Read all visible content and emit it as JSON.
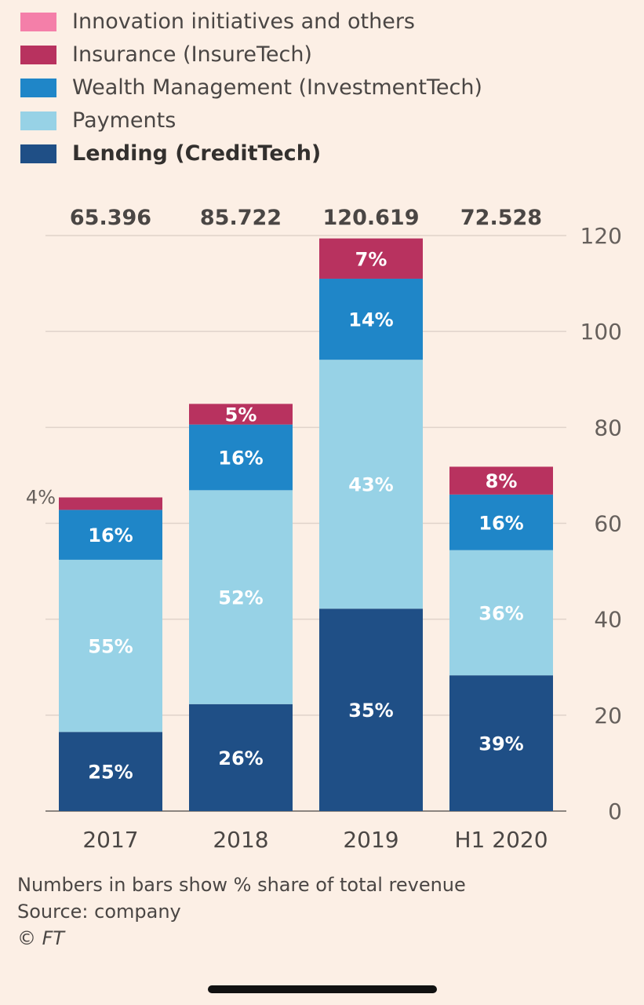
{
  "legend": {
    "items": [
      {
        "label": "Innovation initiatives and others",
        "color": "#f47fa9",
        "bold": false
      },
      {
        "label": "Insurance (InsureTech)",
        "color": "#b8325f",
        "bold": false
      },
      {
        "label": "Wealth Management (InvestmentTech)",
        "color": "#1f86c8",
        "bold": false
      },
      {
        "label": "Payments",
        "color": "#97d2e6",
        "bold": false
      },
      {
        "label": "Lending (CreditTech)",
        "color": "#1f4f86",
        "bold": true
      }
    ]
  },
  "notes": {
    "line1": "Numbers in bars show % share of total revenue",
    "line2": "Source: company",
    "line3": "© FT"
  },
  "chart_data": {
    "type": "bar",
    "stacked": true,
    "categories": [
      "2017",
      "2018",
      "2019",
      "H1 2020"
    ],
    "totals": [
      "65.396",
      "85.722",
      "120.619",
      "72.528"
    ],
    "total_values": [
      65.396,
      85.722,
      120.619,
      72.528
    ],
    "ylim": [
      0,
      120
    ],
    "yticks": [
      0,
      20,
      40,
      60,
      80,
      100,
      120
    ],
    "y_axis_position": "right",
    "grid": true,
    "series": [
      {
        "name": "Lending (CreditTech)",
        "color": "#1f4f86",
        "label_color": "#ffffff",
        "values": [
          16.5,
          22.3,
          42.2,
          28.3
        ],
        "labels": [
          "25%",
          "26%",
          "35%",
          "39%"
        ]
      },
      {
        "name": "Payments",
        "color": "#97d2e6",
        "label_color": "#ffffff",
        "values": [
          35.9,
          44.6,
          51.9,
          26.1
        ],
        "labels": [
          "55%",
          "52%",
          "43%",
          "36%"
        ]
      },
      {
        "name": "Wealth Management (InvestmentTech)",
        "color": "#1f86c8",
        "label_color": "#ffffff",
        "values": [
          10.4,
          13.7,
          16.9,
          11.6
        ],
        "labels": [
          "16%",
          "16%",
          "14%",
          "16%"
        ]
      },
      {
        "name": "Insurance (InsureTech)",
        "color": "#b8325f",
        "label_color": "#ffffff",
        "values": [
          2.6,
          4.3,
          8.4,
          5.8
        ],
        "labels": [
          "4%",
          "5%",
          "7%",
          "8%"
        ]
      },
      {
        "name": "Innovation initiatives and others",
        "color": "#f47fa9",
        "label_color": "#ffffff",
        "values": [
          0,
          0,
          0,
          0
        ],
        "labels": [
          "",
          "",
          "",
          ""
        ]
      }
    ]
  }
}
